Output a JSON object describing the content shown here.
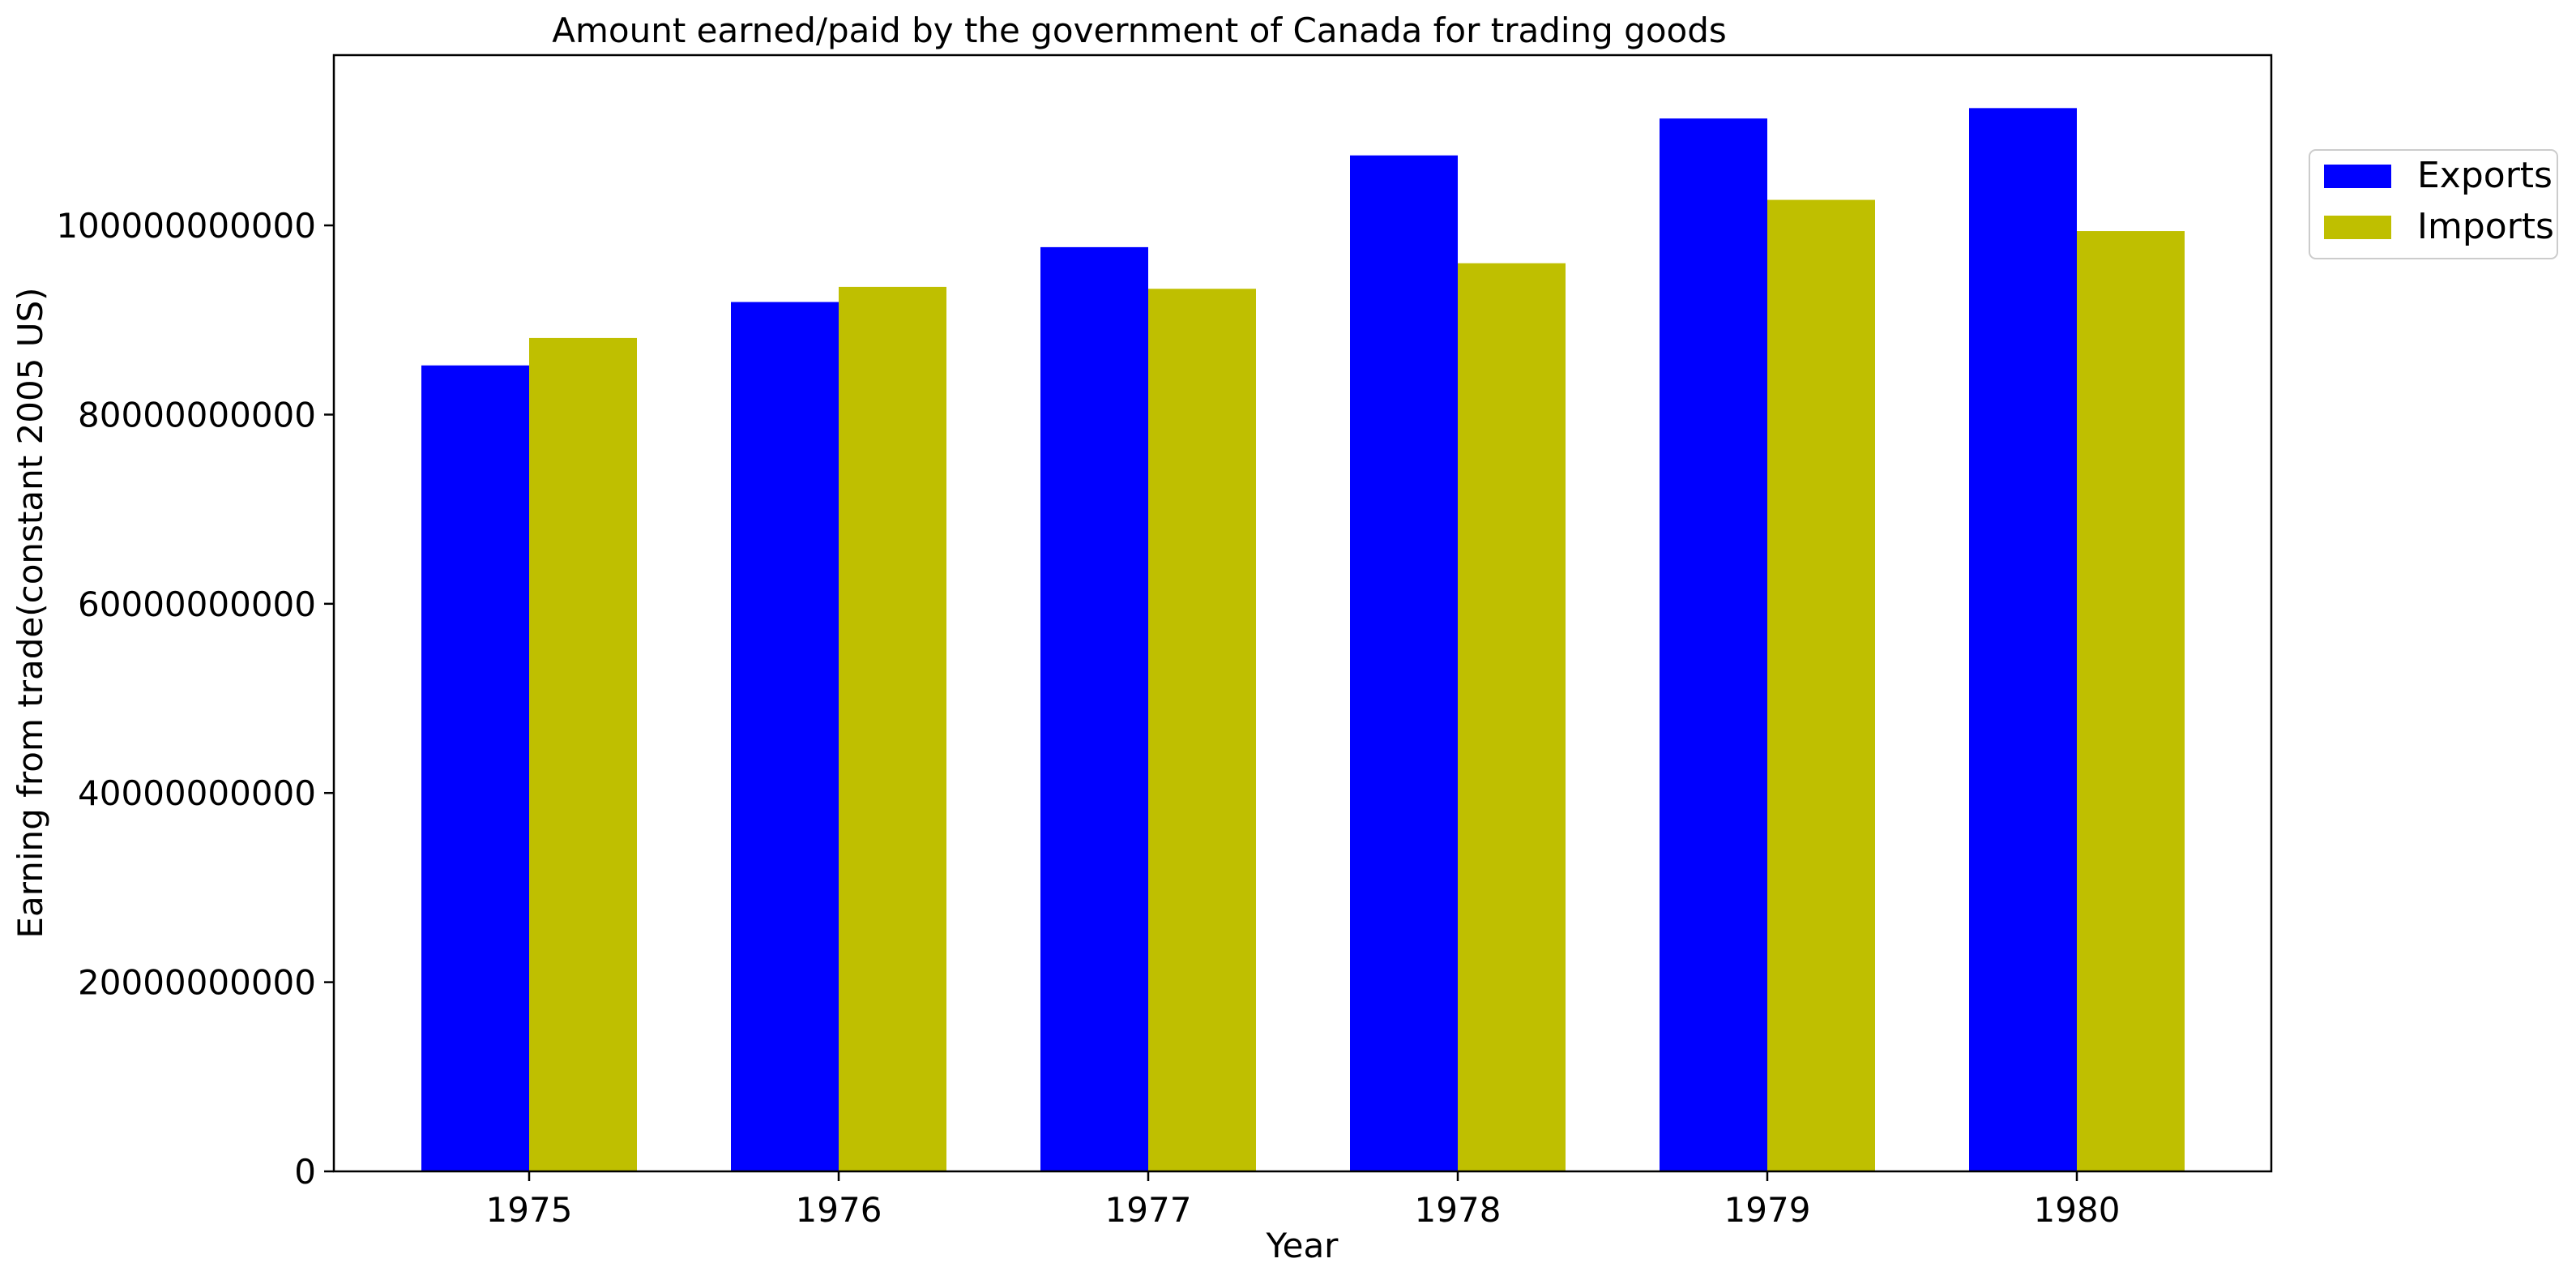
{
  "chart_data": {
    "type": "bar",
    "title": "Amount earned/paid by the government of Canada for trading goods",
    "xlabel": "Year",
    "ylabel": "Earning from trade(constant 2005 US)",
    "categories": [
      "1975",
      "1976",
      "1977",
      "1978",
      "1979",
      "1980"
    ],
    "series": [
      {
        "name": "Exports",
        "color": "#0000ff",
        "values": [
          85200000000,
          91900000000,
          97700000000,
          107400000000,
          111300000000,
          112400000000
        ]
      },
      {
        "name": "Imports",
        "color": "#bfbf00",
        "values": [
          88100000000,
          93500000000,
          93300000000,
          96000000000,
          102700000000,
          99400000000
        ]
      }
    ],
    "ylim": [
      0,
      118000000000
    ],
    "yticks": [
      0,
      20000000000,
      40000000000,
      60000000000,
      80000000000,
      100000000000
    ],
    "ytick_labels": [
      "0",
      "20000000000",
      "40000000000",
      "60000000000",
      "80000000000",
      "100000000000"
    ],
    "grid": false,
    "legend_position": "outside-right-top"
  }
}
